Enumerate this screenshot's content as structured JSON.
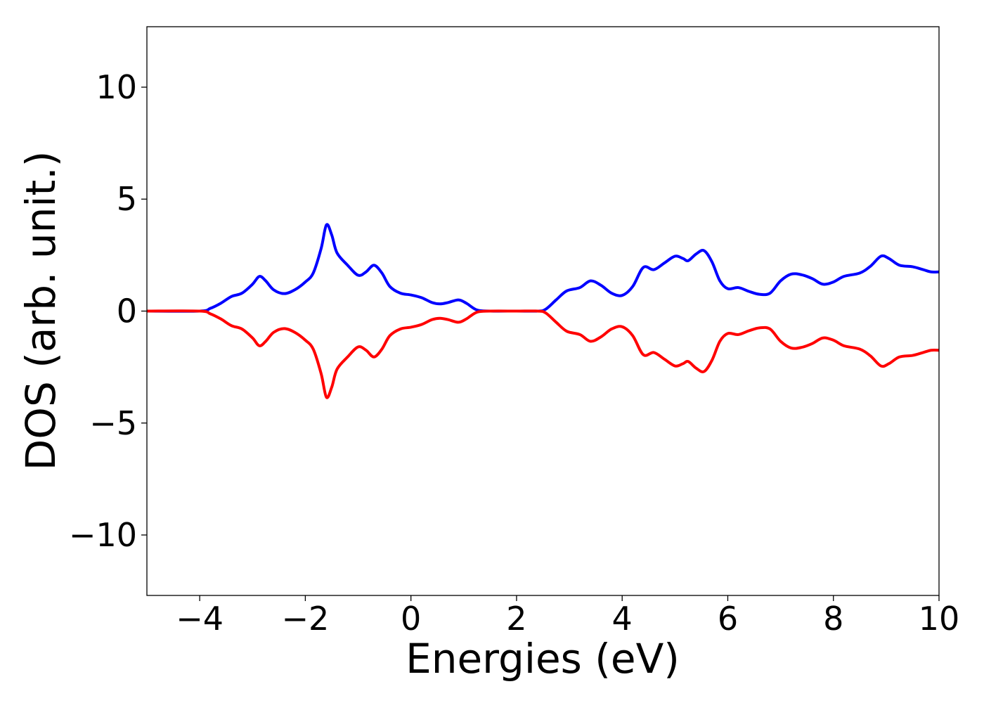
{
  "chart_data": {
    "type": "line",
    "xlabel": "Energies (eV)",
    "ylabel": "DOS (arb. unit.)",
    "xlim": [
      -5,
      10
    ],
    "ylim": [
      -12.7,
      12.7
    ],
    "xticks": [
      {
        "value": -4,
        "label": "−4"
      },
      {
        "value": -2,
        "label": "−2"
      },
      {
        "value": 0,
        "label": "0"
      },
      {
        "value": 2,
        "label": "2"
      },
      {
        "value": 4,
        "label": "4"
      },
      {
        "value": 6,
        "label": "6"
      },
      {
        "value": 8,
        "label": "8"
      },
      {
        "value": 10,
        "label": "10"
      }
    ],
    "yticks": [
      {
        "value": -10,
        "label": "−10"
      },
      {
        "value": -5,
        "label": "−5"
      },
      {
        "value": 0,
        "label": "0"
      },
      {
        "value": 5,
        "label": "5"
      },
      {
        "value": 10,
        "label": "10"
      }
    ],
    "grid": false,
    "legend": false,
    "series": [
      {
        "color": "#0000ff",
        "points": [
          [
            -5.0,
            0.0
          ],
          [
            -4.0,
            0.0
          ],
          [
            -3.8,
            0.12
          ],
          [
            -3.6,
            0.35
          ],
          [
            -3.4,
            0.65
          ],
          [
            -3.2,
            0.8
          ],
          [
            -3.0,
            1.2
          ],
          [
            -2.87,
            1.55
          ],
          [
            -2.75,
            1.35
          ],
          [
            -2.6,
            0.95
          ],
          [
            -2.4,
            0.78
          ],
          [
            -2.2,
            0.95
          ],
          [
            -2.0,
            1.3
          ],
          [
            -1.85,
            1.7
          ],
          [
            -1.7,
            2.8
          ],
          [
            -1.6,
            3.85
          ],
          [
            -1.5,
            3.4
          ],
          [
            -1.4,
            2.6
          ],
          [
            -1.2,
            2.05
          ],
          [
            -1.0,
            1.6
          ],
          [
            -0.85,
            1.75
          ],
          [
            -0.7,
            2.05
          ],
          [
            -0.55,
            1.7
          ],
          [
            -0.4,
            1.1
          ],
          [
            -0.2,
            0.8
          ],
          [
            0.0,
            0.72
          ],
          [
            0.2,
            0.6
          ],
          [
            0.4,
            0.38
          ],
          [
            0.55,
            0.32
          ],
          [
            0.7,
            0.38
          ],
          [
            0.9,
            0.5
          ],
          [
            1.05,
            0.35
          ],
          [
            1.25,
            0.05
          ],
          [
            1.5,
            0.0
          ],
          [
            2.0,
            0.0
          ],
          [
            2.4,
            0.0
          ],
          [
            2.55,
            0.08
          ],
          [
            2.75,
            0.5
          ],
          [
            2.95,
            0.9
          ],
          [
            3.2,
            1.05
          ],
          [
            3.4,
            1.35
          ],
          [
            3.6,
            1.15
          ],
          [
            3.8,
            0.8
          ],
          [
            4.0,
            0.7
          ],
          [
            4.2,
            1.1
          ],
          [
            4.4,
            1.95
          ],
          [
            4.6,
            1.85
          ],
          [
            4.8,
            2.15
          ],
          [
            5.0,
            2.45
          ],
          [
            5.15,
            2.35
          ],
          [
            5.25,
            2.25
          ],
          [
            5.4,
            2.55
          ],
          [
            5.55,
            2.7
          ],
          [
            5.7,
            2.2
          ],
          [
            5.85,
            1.35
          ],
          [
            6.0,
            1.0
          ],
          [
            6.2,
            1.05
          ],
          [
            6.4,
            0.88
          ],
          [
            6.6,
            0.75
          ],
          [
            6.8,
            0.8
          ],
          [
            7.0,
            1.35
          ],
          [
            7.2,
            1.65
          ],
          [
            7.4,
            1.62
          ],
          [
            7.6,
            1.45
          ],
          [
            7.8,
            1.2
          ],
          [
            8.0,
            1.3
          ],
          [
            8.2,
            1.55
          ],
          [
            8.5,
            1.7
          ],
          [
            8.7,
            2.0
          ],
          [
            8.9,
            2.45
          ],
          [
            9.05,
            2.35
          ],
          [
            9.25,
            2.05
          ],
          [
            9.5,
            1.98
          ],
          [
            9.7,
            1.85
          ],
          [
            9.85,
            1.75
          ],
          [
            10.0,
            1.75
          ]
        ]
      },
      {
        "color": "#ff0000",
        "points": [
          [
            -5.0,
            0.0
          ],
          [
            -4.0,
            0.0
          ],
          [
            -3.8,
            -0.12
          ],
          [
            -3.6,
            -0.35
          ],
          [
            -3.4,
            -0.65
          ],
          [
            -3.2,
            -0.8
          ],
          [
            -3.0,
            -1.2
          ],
          [
            -2.87,
            -1.55
          ],
          [
            -2.75,
            -1.35
          ],
          [
            -2.6,
            -0.95
          ],
          [
            -2.4,
            -0.78
          ],
          [
            -2.2,
            -0.95
          ],
          [
            -2.0,
            -1.3
          ],
          [
            -1.85,
            -1.7
          ],
          [
            -1.7,
            -2.8
          ],
          [
            -1.6,
            -3.85
          ],
          [
            -1.5,
            -3.4
          ],
          [
            -1.4,
            -2.6
          ],
          [
            -1.2,
            -2.05
          ],
          [
            -1.0,
            -1.6
          ],
          [
            -0.85,
            -1.75
          ],
          [
            -0.7,
            -2.05
          ],
          [
            -0.55,
            -1.7
          ],
          [
            -0.4,
            -1.1
          ],
          [
            -0.2,
            -0.8
          ],
          [
            0.0,
            -0.72
          ],
          [
            0.2,
            -0.6
          ],
          [
            0.4,
            -0.38
          ],
          [
            0.55,
            -0.32
          ],
          [
            0.7,
            -0.38
          ],
          [
            0.9,
            -0.5
          ],
          [
            1.05,
            -0.35
          ],
          [
            1.25,
            -0.05
          ],
          [
            1.5,
            0.0
          ],
          [
            2.0,
            0.0
          ],
          [
            2.4,
            0.0
          ],
          [
            2.55,
            -0.08
          ],
          [
            2.75,
            -0.5
          ],
          [
            2.95,
            -0.9
          ],
          [
            3.2,
            -1.05
          ],
          [
            3.4,
            -1.35
          ],
          [
            3.6,
            -1.15
          ],
          [
            3.8,
            -0.8
          ],
          [
            4.0,
            -0.7
          ],
          [
            4.2,
            -1.1
          ],
          [
            4.4,
            -1.95
          ],
          [
            4.6,
            -1.85
          ],
          [
            4.8,
            -2.15
          ],
          [
            5.0,
            -2.45
          ],
          [
            5.15,
            -2.35
          ],
          [
            5.25,
            -2.25
          ],
          [
            5.4,
            -2.55
          ],
          [
            5.55,
            -2.7
          ],
          [
            5.7,
            -2.2
          ],
          [
            5.85,
            -1.35
          ],
          [
            6.0,
            -1.0
          ],
          [
            6.2,
            -1.05
          ],
          [
            6.4,
            -0.88
          ],
          [
            6.6,
            -0.75
          ],
          [
            6.8,
            -0.8
          ],
          [
            7.0,
            -1.35
          ],
          [
            7.2,
            -1.65
          ],
          [
            7.4,
            -1.62
          ],
          [
            7.6,
            -1.45
          ],
          [
            7.8,
            -1.2
          ],
          [
            8.0,
            -1.3
          ],
          [
            8.2,
            -1.55
          ],
          [
            8.5,
            -1.7
          ],
          [
            8.7,
            -2.0
          ],
          [
            8.9,
            -2.45
          ],
          [
            9.05,
            -2.35
          ],
          [
            9.25,
            -2.05
          ],
          [
            9.5,
            -1.98
          ],
          [
            9.7,
            -1.85
          ],
          [
            9.85,
            -1.75
          ],
          [
            10.0,
            -1.75
          ]
        ]
      }
    ]
  }
}
